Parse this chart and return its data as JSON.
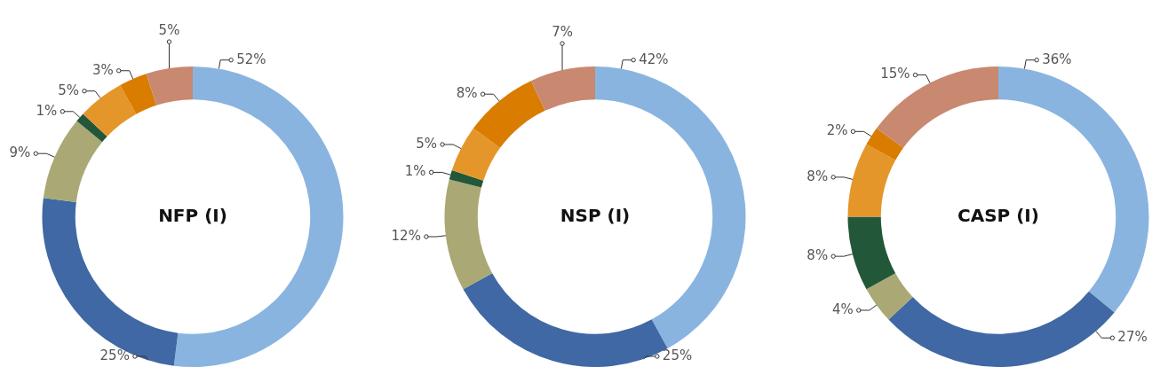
{
  "chart_data": [
    {
      "type": "donut",
      "title": "NFP (I)",
      "categories": [
        null,
        null,
        null,
        null,
        null,
        null,
        null
      ],
      "values": [
        52,
        25,
        9,
        1,
        5,
        3,
        5
      ],
      "value_labels": [
        "52%",
        "25%",
        "9%",
        "1%",
        "5%",
        "3%",
        "5%"
      ],
      "colors": [
        "#8ab4e0",
        "#3f68a4",
        "#aaa874",
        "#22573a",
        "#e5962a",
        "#d97c00",
        "#c98870"
      ]
    },
    {
      "type": "donut",
      "title": "NSP (I)",
      "categories": [
        null,
        null,
        null,
        null,
        null,
        null,
        null
      ],
      "values": [
        42,
        25,
        12,
        1,
        5,
        8,
        7
      ],
      "value_labels": [
        "42%",
        "25%",
        "12%",
        "1%",
        "5%",
        "8%",
        "7%"
      ],
      "colors": [
        "#8ab4e0",
        "#3f68a4",
        "#aaa874",
        "#22573a",
        "#e5962a",
        "#d97c00",
        "#c98870"
      ]
    },
    {
      "type": "donut",
      "title": "CASP (I)",
      "categories": [
        null,
        null,
        null,
        null,
        null,
        null,
        null
      ],
      "values": [
        36,
        27,
        4,
        8,
        8,
        2,
        15
      ],
      "value_labels": [
        "36%",
        "27%",
        "4%",
        "8%",
        "8%",
        "2%",
        "15%"
      ],
      "colors": [
        "#8ab4e0",
        "#3f68a4",
        "#aaa874",
        "#22573a",
        "#e5962a",
        "#d97c00",
        "#c98870"
      ]
    }
  ]
}
